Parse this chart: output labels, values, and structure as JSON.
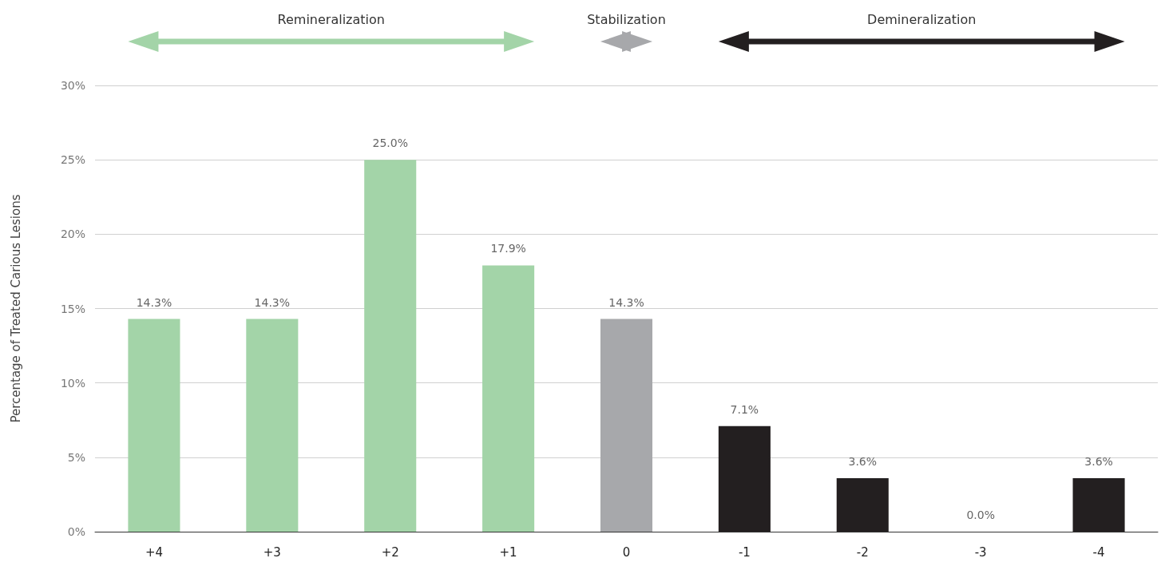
{
  "chart_data": {
    "type": "bar",
    "ylabel": "Percentage of Treated Carious Lesions",
    "categories": [
      "+4",
      "+3",
      "+2",
      "+1",
      "0",
      "-1",
      "-2",
      "-3",
      "-4"
    ],
    "values": [
      14.3,
      14.3,
      25.0,
      17.9,
      14.3,
      7.1,
      3.6,
      0.0,
      3.6
    ],
    "value_labels": [
      "14.3%",
      "14.3%",
      "25.0%",
      "17.9%",
      "14.3%",
      "7.1%",
      "3.6%",
      "0.0%",
      "3.6%"
    ],
    "colors": [
      "#a3d4a8",
      "#a3d4a8",
      "#a3d4a8",
      "#a3d4a8",
      "#a7a8ab",
      "#231f20",
      "#231f20",
      "#231f20",
      "#231f20"
    ],
    "ylim": [
      0,
      30
    ],
    "yticks": [
      {
        "value": 0,
        "label": "0%"
      },
      {
        "value": 5,
        "label": "5%"
      },
      {
        "value": 10,
        "label": "10%"
      },
      {
        "value": 15,
        "label": "15%"
      },
      {
        "value": 20,
        "label": "20%"
      },
      {
        "value": 25,
        "label": "25%"
      },
      {
        "value": 30,
        "label": "30%"
      }
    ],
    "grid": "y",
    "annotations": [
      "Remineralization",
      "Stabilization",
      "Demineralization"
    ]
  }
}
